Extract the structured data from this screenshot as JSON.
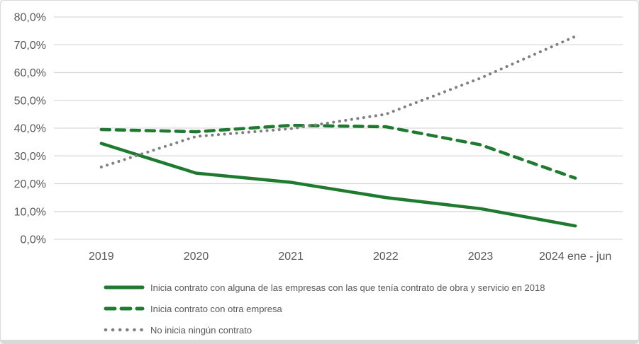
{
  "chart_data": {
    "type": "line",
    "title": "",
    "xlabel": "",
    "ylabel": "",
    "categories": [
      "2019",
      "2020",
      "2021",
      "2022",
      "2023",
      "2024 ene - jun"
    ],
    "series": [
      {
        "name": "Inicia contrato con alguna de las empresas con las que tenía contrato de obra y servicio en 2018",
        "style": "solid",
        "color": "#1e7a2e",
        "values": [
          34.5,
          23.8,
          20.5,
          15.0,
          11.0,
          4.8
        ]
      },
      {
        "name": "Inicia contrato con otra empresa",
        "style": "dashed",
        "color": "#1e7a2e",
        "values": [
          39.5,
          38.7,
          41.0,
          40.5,
          34.0,
          22.0
        ]
      },
      {
        "name": "No inicia ningún contrato",
        "style": "dotted",
        "color": "#7f7f7f",
        "values": [
          26.0,
          37.0,
          39.8,
          45.0,
          58.0,
          73.0
        ]
      }
    ],
    "ylim": [
      0,
      80
    ],
    "y_tick_step": 10,
    "y_tick_labels": [
      "0,0%",
      "10,0%",
      "20,0%",
      "30,0%",
      "40,0%",
      "50,0%",
      "60,0%",
      "70,0%",
      "80,0%"
    ],
    "grid": true,
    "legend_position": "bottom-left"
  },
  "colors": {
    "axis_text": "#595959",
    "gridline": "#d9d9d9",
    "frame_border": "#d9d9d9",
    "background": "#ffffff"
  }
}
